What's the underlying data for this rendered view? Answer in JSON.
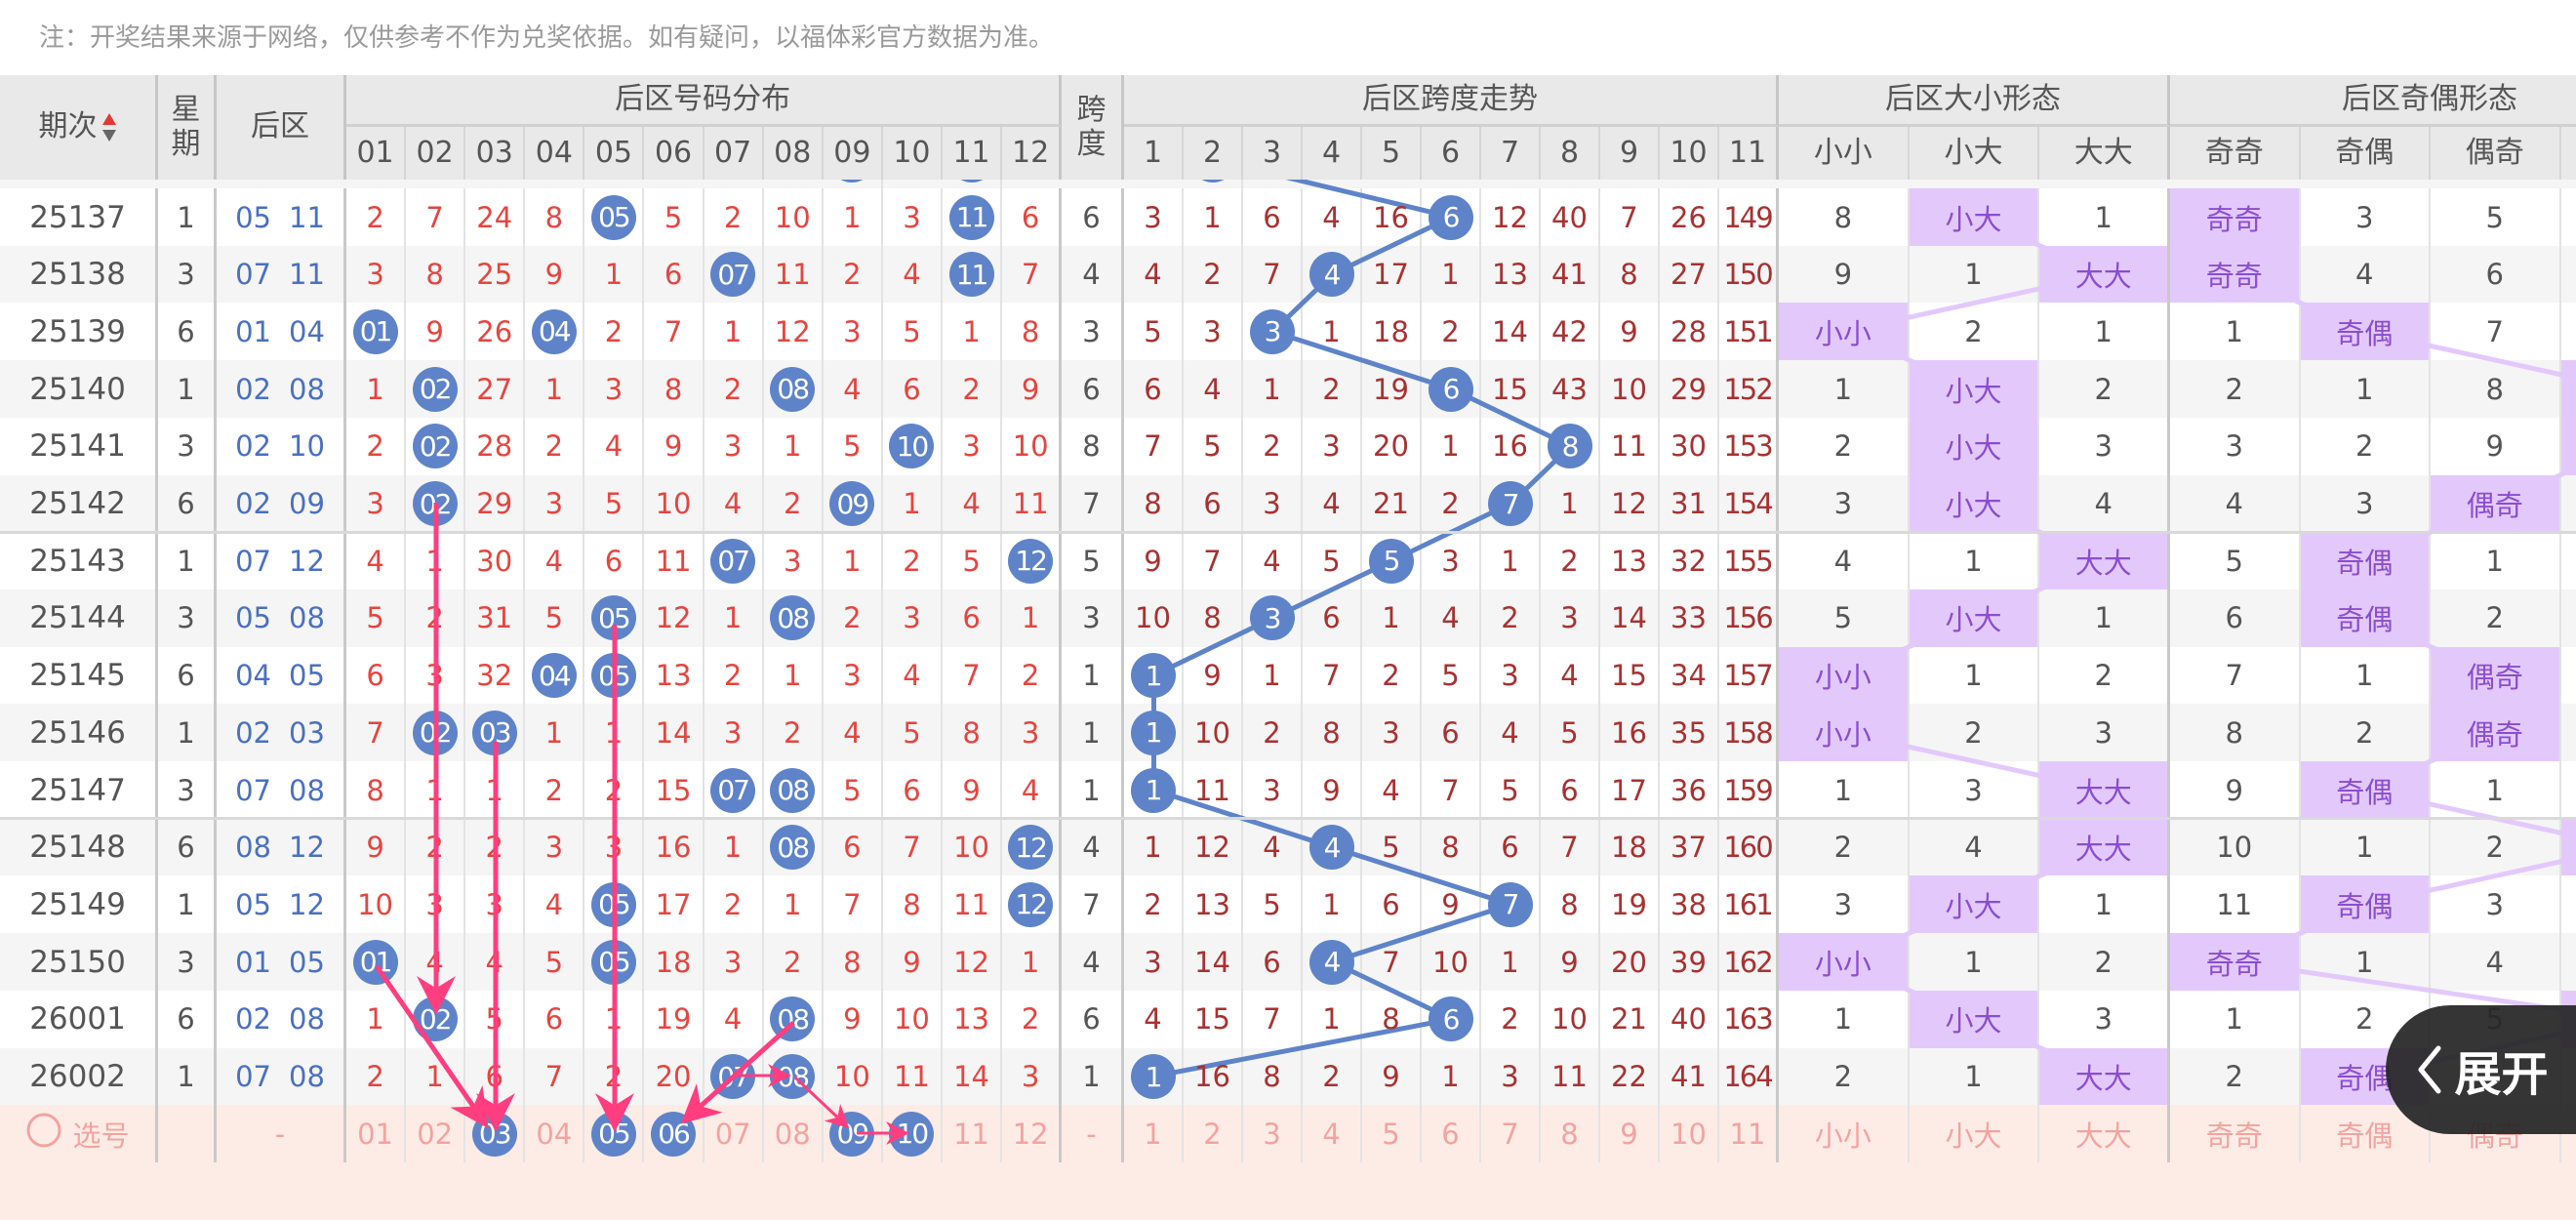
{
  "note": "注：开奖结果来源于网络，仅供参考不作为兑奖依据。如有疑问，以福体彩官方数据为准。",
  "header": {
    "issue": "期次",
    "weekday": "星期",
    "back": "后区",
    "dist_title": "后区号码分布",
    "dist_cols": [
      "01",
      "02",
      "03",
      "04",
      "05",
      "06",
      "07",
      "08",
      "09",
      "10",
      "11",
      "12"
    ],
    "span": "跨度",
    "trend_title": "后区跨度走势",
    "trend_cols": [
      "1",
      "2",
      "3",
      "4",
      "5",
      "6",
      "7",
      "8",
      "9",
      "10",
      "11"
    ],
    "dx_title": "后区大小形态",
    "dx_cols": [
      "小小",
      "小大",
      "大大"
    ],
    "jo_title": "后区奇偶形态",
    "jo_cols": [
      "奇奇",
      "奇偶",
      "偶奇"
    ]
  },
  "colors": {
    "ball": "#5e83c9",
    "highlight": "#e3c9fb",
    "highlight_text": "#8a4dd0",
    "arrow": "#ff3d7f",
    "number_red": "#e64540"
  },
  "prev_row_hits": {
    "dist": [
      "09",
      "11"
    ],
    "span": 2
  },
  "rows": [
    {
      "issue": "25137",
      "weekday": "1",
      "back": [
        "05",
        "11"
      ],
      "dist": [
        "2",
        "7",
        "24",
        "8",
        "05",
        "5",
        "2",
        "10",
        "1",
        "3",
        "11",
        "6"
      ],
      "span": "6",
      "trend": [
        "3",
        "1",
        "6",
        "4",
        "16",
        "6",
        "12",
        "40",
        "7",
        "26",
        "149"
      ],
      "dx": [
        "8",
        "小大",
        "1"
      ],
      "dx_hit": 1,
      "jo": [
        "奇奇",
        "3",
        "5"
      ],
      "jo_hit": 0
    },
    {
      "issue": "25138",
      "weekday": "3",
      "back": [
        "07",
        "11"
      ],
      "dist": [
        "3",
        "8",
        "25",
        "9",
        "1",
        "6",
        "07",
        "11",
        "2",
        "4",
        "11",
        "7"
      ],
      "span": "4",
      "trend": [
        "4",
        "2",
        "7",
        "4",
        "17",
        "1",
        "13",
        "41",
        "8",
        "27",
        "150"
      ],
      "dx": [
        "9",
        "1",
        "大大"
      ],
      "dx_hit": 2,
      "jo": [
        "奇奇",
        "4",
        "6"
      ],
      "jo_hit": 0
    },
    {
      "issue": "25139",
      "weekday": "6",
      "back": [
        "01",
        "04"
      ],
      "dist": [
        "01",
        "9",
        "26",
        "04",
        "2",
        "7",
        "1",
        "12",
        "3",
        "5",
        "1",
        "8"
      ],
      "span": "3",
      "trend": [
        "5",
        "3",
        "3",
        "1",
        "18",
        "2",
        "14",
        "42",
        "9",
        "28",
        "151"
      ],
      "dx": [
        "小小",
        "2",
        "1"
      ],
      "dx_hit": 0,
      "jo": [
        "1",
        "奇偶",
        "7"
      ],
      "jo_hit": 1
    },
    {
      "issue": "25140",
      "weekday": "1",
      "back": [
        "02",
        "08"
      ],
      "dist": [
        "1",
        "02",
        "27",
        "1",
        "3",
        "8",
        "2",
        "08",
        "4",
        "6",
        "2",
        "9"
      ],
      "span": "6",
      "trend": [
        "6",
        "4",
        "1",
        "2",
        "19",
        "6",
        "15",
        "43",
        "10",
        "29",
        "152"
      ],
      "dx": [
        "1",
        "小大",
        "2"
      ],
      "dx_hit": 1,
      "jo": [
        "2",
        "1",
        "8"
      ],
      "jo_hit": 3
    },
    {
      "issue": "25141",
      "weekday": "3",
      "back": [
        "02",
        "10"
      ],
      "dist": [
        "2",
        "02",
        "28",
        "2",
        "4",
        "9",
        "3",
        "1",
        "5",
        "10",
        "3",
        "10"
      ],
      "span": "8",
      "trend": [
        "7",
        "5",
        "2",
        "3",
        "20",
        "1",
        "16",
        "8",
        "11",
        "30",
        "153"
      ],
      "dx": [
        "2",
        "小大",
        "3"
      ],
      "dx_hit": 1,
      "jo": [
        "3",
        "2",
        "9"
      ],
      "jo_hit": 3
    },
    {
      "issue": "25142",
      "weekday": "6",
      "back": [
        "02",
        "09"
      ],
      "dist": [
        "3",
        "02",
        "29",
        "3",
        "5",
        "10",
        "4",
        "2",
        "09",
        "1",
        "4",
        "11"
      ],
      "span": "7",
      "trend": [
        "8",
        "6",
        "3",
        "4",
        "21",
        "2",
        "7",
        "1",
        "12",
        "31",
        "154"
      ],
      "dx": [
        "3",
        "小大",
        "4"
      ],
      "dx_hit": 1,
      "jo": [
        "4",
        "3",
        "偶奇"
      ],
      "jo_hit": 2
    },
    {
      "issue": "25143",
      "weekday": "1",
      "back": [
        "07",
        "12"
      ],
      "dist": [
        "4",
        "1",
        "30",
        "4",
        "6",
        "11",
        "07",
        "3",
        "1",
        "2",
        "5",
        "12"
      ],
      "span": "5",
      "trend": [
        "9",
        "7",
        "4",
        "5",
        "5",
        "3",
        "1",
        "2",
        "13",
        "32",
        "155"
      ],
      "dx": [
        "4",
        "1",
        "大大"
      ],
      "dx_hit": 2,
      "jo": [
        "5",
        "奇偶",
        "1"
      ],
      "jo_hit": 1
    },
    {
      "issue": "25144",
      "weekday": "3",
      "back": [
        "05",
        "08"
      ],
      "dist": [
        "5",
        "2",
        "31",
        "5",
        "05",
        "12",
        "1",
        "08",
        "2",
        "3",
        "6",
        "1"
      ],
      "span": "3",
      "trend": [
        "10",
        "8",
        "3",
        "6",
        "1",
        "4",
        "2",
        "3",
        "14",
        "33",
        "156"
      ],
      "dx": [
        "5",
        "小大",
        "1"
      ],
      "dx_hit": 1,
      "jo": [
        "6",
        "奇偶",
        "2"
      ],
      "jo_hit": 1
    },
    {
      "issue": "25145",
      "weekday": "6",
      "back": [
        "04",
        "05"
      ],
      "dist": [
        "6",
        "3",
        "32",
        "04",
        "05",
        "13",
        "2",
        "1",
        "3",
        "4",
        "7",
        "2"
      ],
      "span": "1",
      "trend": [
        "1",
        "9",
        "1",
        "7",
        "2",
        "5",
        "3",
        "4",
        "15",
        "34",
        "157"
      ],
      "dx": [
        "小小",
        "1",
        "2"
      ],
      "dx_hit": 0,
      "jo": [
        "7",
        "1",
        "偶奇"
      ],
      "jo_hit": 2
    },
    {
      "issue": "25146",
      "weekday": "1",
      "back": [
        "02",
        "03"
      ],
      "dist": [
        "7",
        "02",
        "03",
        "1",
        "1",
        "14",
        "3",
        "2",
        "4",
        "5",
        "8",
        "3"
      ],
      "span": "1",
      "trend": [
        "1",
        "10",
        "2",
        "8",
        "3",
        "6",
        "4",
        "5",
        "16",
        "35",
        "158"
      ],
      "dx": [
        "小小",
        "2",
        "3"
      ],
      "dx_hit": 0,
      "jo": [
        "8",
        "2",
        "偶奇"
      ],
      "jo_hit": 2
    },
    {
      "issue": "25147",
      "weekday": "3",
      "back": [
        "07",
        "08"
      ],
      "dist": [
        "8",
        "1",
        "1",
        "2",
        "2",
        "15",
        "07",
        "08",
        "5",
        "6",
        "9",
        "4"
      ],
      "span": "1",
      "trend": [
        "1",
        "11",
        "3",
        "9",
        "4",
        "7",
        "5",
        "6",
        "17",
        "36",
        "159"
      ],
      "dx": [
        "1",
        "3",
        "大大"
      ],
      "dx_hit": 2,
      "jo": [
        "9",
        "奇偶",
        "1"
      ],
      "jo_hit": 1
    },
    {
      "issue": "25148",
      "weekday": "6",
      "back": [
        "08",
        "12"
      ],
      "dist": [
        "9",
        "2",
        "2",
        "3",
        "3",
        "16",
        "1",
        "08",
        "6",
        "7",
        "10",
        "12"
      ],
      "span": "4",
      "trend": [
        "1",
        "12",
        "4",
        "4",
        "5",
        "8",
        "6",
        "7",
        "18",
        "37",
        "160"
      ],
      "dx": [
        "2",
        "4",
        "大大"
      ],
      "dx_hit": 2,
      "jo": [
        "10",
        "1",
        "2"
      ],
      "jo_hit": 3
    },
    {
      "issue": "25149",
      "weekday": "1",
      "back": [
        "05",
        "12"
      ],
      "dist": [
        "10",
        "3",
        "3",
        "4",
        "05",
        "17",
        "2",
        "1",
        "7",
        "8",
        "11",
        "12"
      ],
      "span": "7",
      "trend": [
        "2",
        "13",
        "5",
        "1",
        "6",
        "9",
        "7",
        "8",
        "19",
        "38",
        "161"
      ],
      "dx": [
        "3",
        "小大",
        "1"
      ],
      "dx_hit": 1,
      "jo": [
        "11",
        "奇偶",
        "3"
      ],
      "jo_hit": 1
    },
    {
      "issue": "25150",
      "weekday": "3",
      "back": [
        "01",
        "05"
      ],
      "dist": [
        "01",
        "4",
        "4",
        "5",
        "05",
        "18",
        "3",
        "2",
        "8",
        "9",
        "12",
        "1"
      ],
      "span": "4",
      "trend": [
        "3",
        "14",
        "6",
        "4",
        "7",
        "10",
        "1",
        "9",
        "20",
        "39",
        "162"
      ],
      "dx": [
        "小小",
        "1",
        "2"
      ],
      "dx_hit": 0,
      "jo": [
        "奇奇",
        "1",
        "4"
      ],
      "jo_hit": 0
    },
    {
      "issue": "26001",
      "weekday": "6",
      "back": [
        "02",
        "08"
      ],
      "dist": [
        "1",
        "02",
        "5",
        "6",
        "1",
        "19",
        "4",
        "08",
        "9",
        "10",
        "13",
        "2"
      ],
      "span": "6",
      "trend": [
        "4",
        "15",
        "7",
        "1",
        "8",
        "6",
        "2",
        "10",
        "21",
        "40",
        "163"
      ],
      "dx": [
        "1",
        "小大",
        "3"
      ],
      "dx_hit": 1,
      "jo": [
        "1",
        "2",
        "5"
      ],
      "jo_hit": 3
    },
    {
      "issue": "26002",
      "weekday": "1",
      "back": [
        "07",
        "08"
      ],
      "dist": [
        "2",
        "1",
        "6",
        "7",
        "2",
        "20",
        "07",
        "08",
        "10",
        "11",
        "14",
        "3"
      ],
      "span": "1",
      "trend": [
        "1",
        "16",
        "8",
        "2",
        "9",
        "1",
        "3",
        "11",
        "22",
        "41",
        "164"
      ],
      "dx": [
        "2",
        "1",
        "大大"
      ],
      "dx_hit": 2,
      "jo": [
        "2",
        "奇偶",
        ""
      ],
      "jo_hit": 1
    }
  ],
  "footer": {
    "select_label": "选号",
    "back": "-",
    "span": "-",
    "dist": [
      "01",
      "02",
      "03",
      "04",
      "05",
      "06",
      "07",
      "08",
      "09",
      "10",
      "11",
      "12"
    ],
    "dist_selected": [
      "03",
      "05",
      "06",
      "09",
      "10"
    ],
    "trend": [
      "1",
      "2",
      "3",
      "4",
      "5",
      "6",
      "7",
      "8",
      "9",
      "10",
      "11"
    ],
    "dx": [
      "小小",
      "小大",
      "大大"
    ],
    "jo": [
      "奇奇",
      "奇偶",
      "偶奇"
    ]
  },
  "expand_button": {
    "label": "展开",
    "icon": "chevron-left-icon"
  }
}
